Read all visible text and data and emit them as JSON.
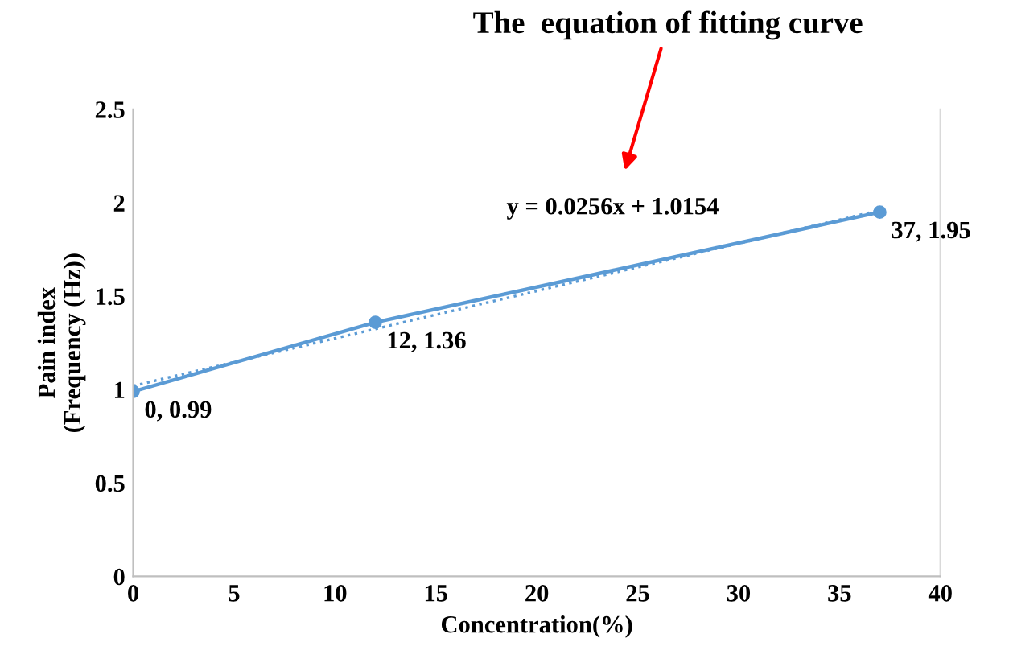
{
  "chart_data": {
    "type": "line",
    "xlabel": "Concentration(%)",
    "ylabel": "Pain index\n(Frequency (Hz))",
    "series": [
      {
        "color": "#5b9bd5",
        "x": [
          0,
          12,
          37
        ],
        "values": [
          0.99,
          1.36,
          1.95
        ],
        "marker": "circle",
        "line_style": "solid",
        "value_labels": [
          "0, 0.99",
          "12, 1.36",
          "37, 1.95"
        ]
      },
      {
        "color": "#5b9bd5",
        "x": [
          0,
          37
        ],
        "values": [
          1.02,
          1.96
        ],
        "marker": "none",
        "line_style": "dotted"
      }
    ],
    "annotations": [
      "The  equation of fitting curve",
      "y = 0.0256x + 1.0154"
    ],
    "xlim": [
      0,
      40
    ],
    "xticks": [
      0,
      5,
      10,
      15,
      20,
      25,
      30,
      35,
      40
    ],
    "ylim": [
      0,
      2.5
    ],
    "yticks": [
      0,
      0.5,
      1,
      1.5,
      2,
      2.5
    ],
    "grid": false,
    "legend": false
  }
}
